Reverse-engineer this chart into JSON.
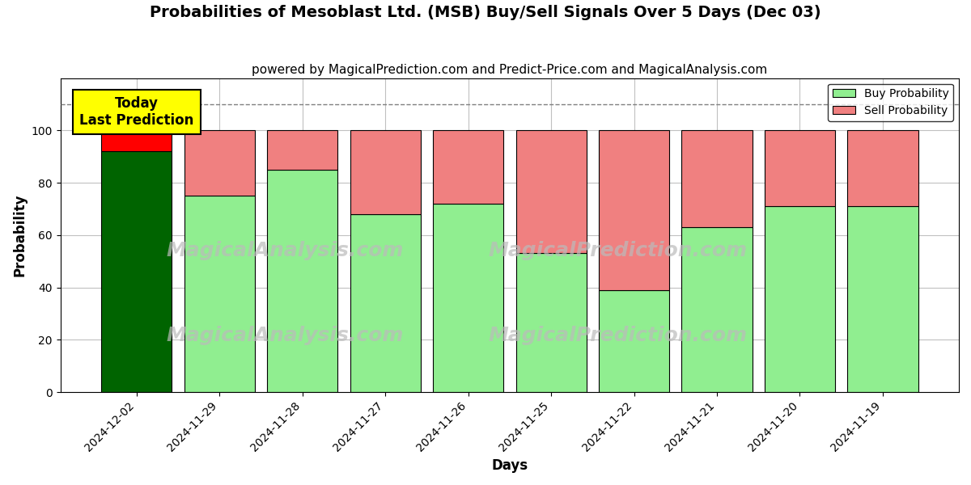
{
  "title": "Probabilities of Mesoblast Ltd. (MSB) Buy/Sell Signals Over 5 Days (Dec 03)",
  "subtitle": "powered by MagicalPrediction.com and Predict-Price.com and MagicalAnalysis.com",
  "xlabel": "Days",
  "ylabel": "Probability",
  "dates": [
    "2024-12-02",
    "2024-11-29",
    "2024-11-28",
    "2024-11-27",
    "2024-11-26",
    "2024-11-25",
    "2024-11-22",
    "2024-11-21",
    "2024-11-20",
    "2024-11-19"
  ],
  "buy_values": [
    92,
    75,
    85,
    68,
    72,
    53,
    39,
    63,
    71,
    71
  ],
  "sell_values": [
    8,
    25,
    15,
    32,
    28,
    47,
    61,
    37,
    29,
    29
  ],
  "today_buy_color": "#006400",
  "today_sell_color": "#ff0000",
  "other_buy_color": "#90EE90",
  "other_sell_color": "#F08080",
  "bar_edge_color": "#000000",
  "ylim": [
    0,
    120
  ],
  "yticks": [
    0,
    20,
    40,
    60,
    80,
    100
  ],
  "dashed_line_y": 110,
  "dashed_line_color": "#808080",
  "annotation_text": "Today\nLast Prediction",
  "annotation_bg": "#ffff00",
  "legend_buy_label": "Buy Probability",
  "legend_sell_label": "Sell Probability",
  "watermark_color": "#bbbbbb",
  "background_color": "#ffffff",
  "grid_color": "#c0c0c0",
  "title_fontsize": 14,
  "subtitle_fontsize": 11,
  "axis_label_fontsize": 12,
  "tick_fontsize": 10
}
